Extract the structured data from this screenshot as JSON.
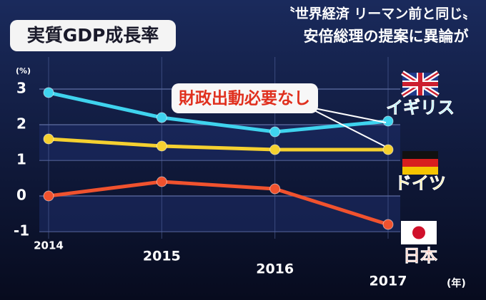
{
  "chart_data": {
    "type": "line",
    "title": "実質GDP成長率",
    "headline": [
      "〝世界経済 リーマン前と同じ〟",
      "安倍総理の提案に異論が"
    ],
    "annotation": "財政出動必要なし",
    "y_unit": "(%)",
    "x_unit": "(年)",
    "categories": [
      "2014",
      "2015",
      "2016",
      "2017"
    ],
    "series": [
      {
        "name": "イギリス",
        "color": "#3fd3ee",
        "values": [
          2.9,
          2.2,
          1.8,
          2.1
        ]
      },
      {
        "name": "ドイツ",
        "color": "#f5d030",
        "values": [
          1.6,
          1.4,
          1.3,
          1.3
        ]
      },
      {
        "name": "日本",
        "color": "#f0522e",
        "values": [
          0,
          0.4,
          0.2,
          -0.8
        ]
      }
    ],
    "ylim": [
      -1,
      3
    ],
    "yticks": [
      -1,
      0,
      1,
      2,
      3
    ],
    "grid": true
  }
}
